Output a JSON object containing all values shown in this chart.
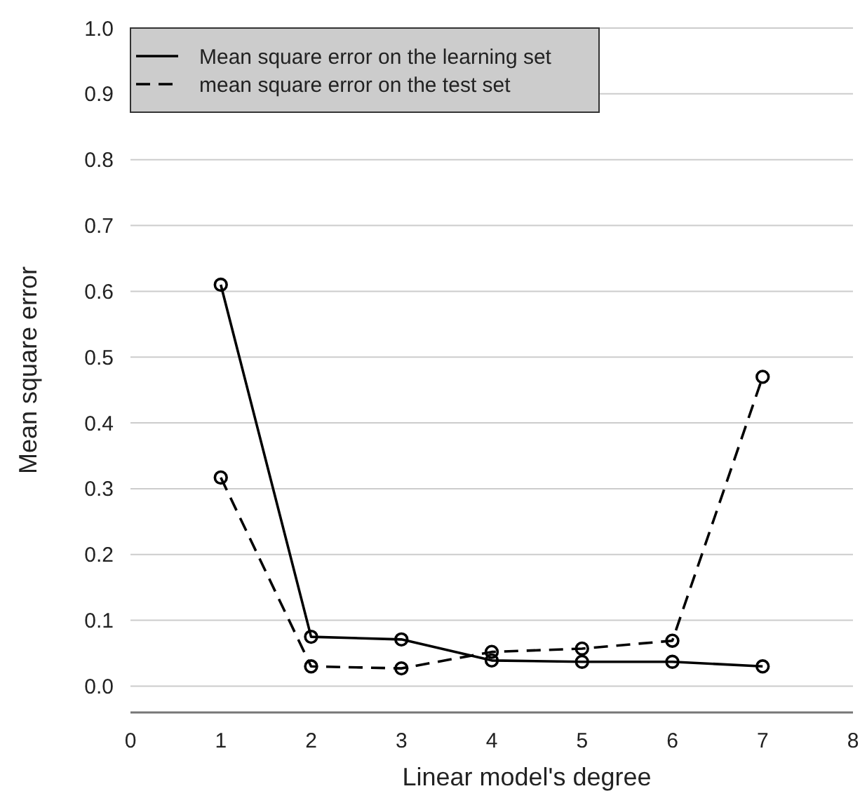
{
  "chart_data": {
    "type": "line",
    "xlabel": "Linear model's degree",
    "ylabel": "Mean square error",
    "x": [
      1,
      2,
      3,
      4,
      5,
      6,
      7
    ],
    "series": [
      {
        "name": "Mean square error on the learning set",
        "color": "#000000",
        "line_style": "solid",
        "values": [
          0.61,
          0.075,
          0.071,
          0.039,
          0.037,
          0.037,
          0.03
        ]
      },
      {
        "name": "mean square error on the test set",
        "color": "#000000",
        "line_style": "dashed",
        "values": [
          0.317,
          0.03,
          0.027,
          0.052,
          0.057,
          0.069,
          0.47
        ]
      }
    ],
    "marker": "circle",
    "xlim": [
      0,
      8
    ],
    "xticks": [
      0,
      1,
      2,
      3,
      4,
      5,
      6,
      7,
      8
    ],
    "ylim": [
      -0.04,
      1.0
    ],
    "yticks": [
      {
        "value": 0,
        "label": "0.0"
      },
      0.1,
      0.2,
      0.3,
      0.4,
      0.5,
      0.6,
      0.7,
      0.8,
      0.9,
      {
        "value": 1,
        "label": "1.0"
      }
    ],
    "grid": "y",
    "legend": "top left"
  }
}
